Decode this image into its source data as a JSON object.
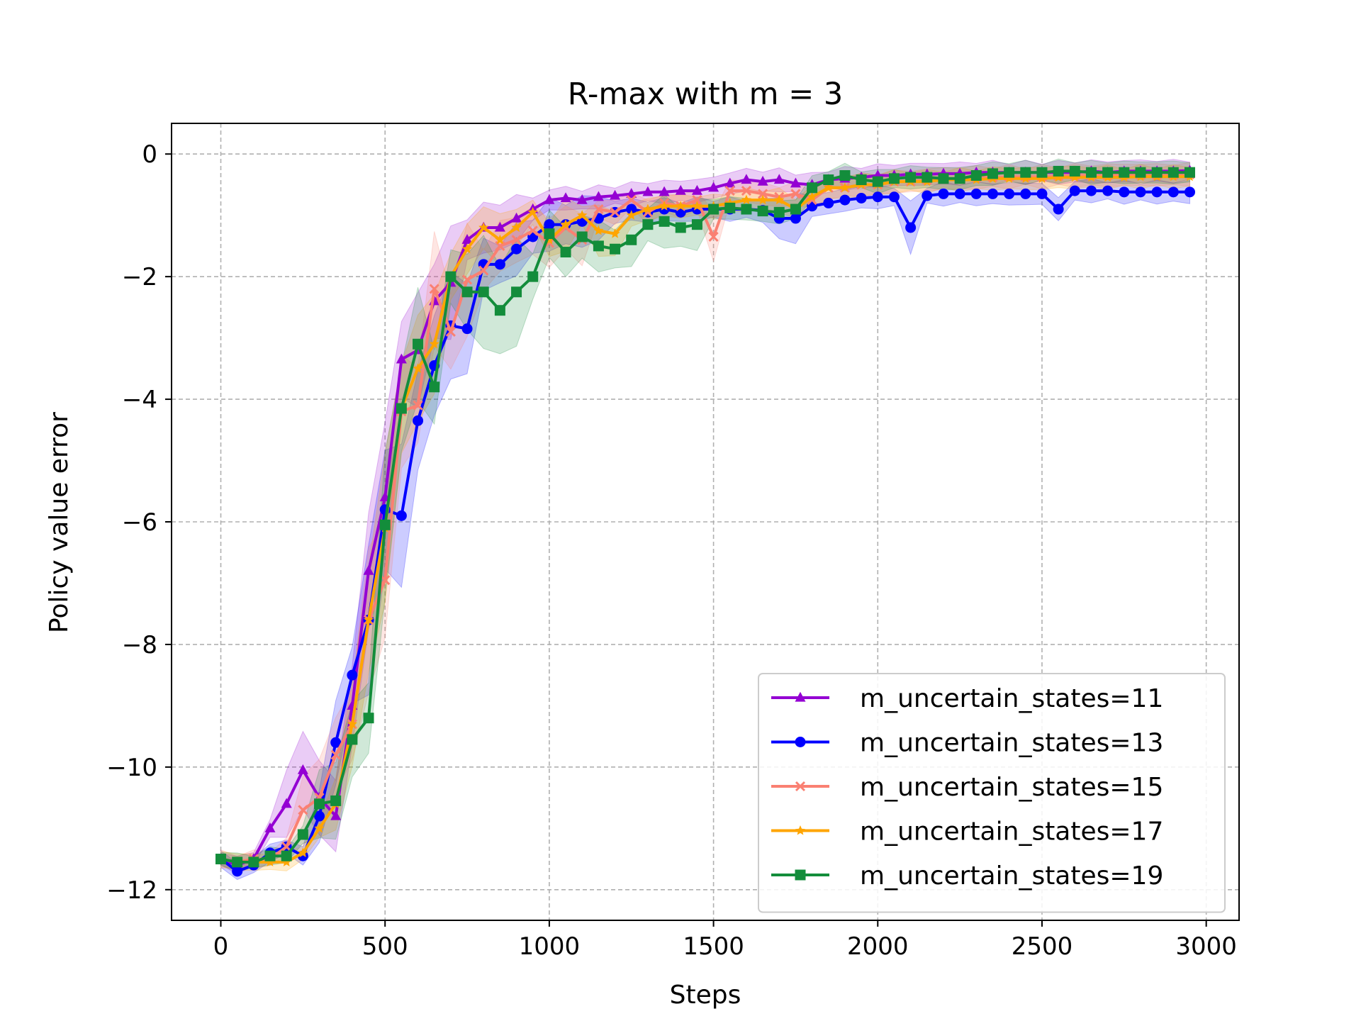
{
  "chart_data": {
    "type": "line",
    "title": "R-max with m = 3",
    "xlabel": "Steps",
    "ylabel": "Policy value error",
    "xlim": [
      -150,
      3100
    ],
    "ylim": [
      -12.5,
      0.5
    ],
    "xticks": [
      0,
      500,
      1000,
      1500,
      2000,
      2500,
      3000
    ],
    "yticks": [
      0,
      -2,
      -4,
      -6,
      -8,
      -10,
      -12
    ],
    "xtick_labels": [
      "0",
      "500",
      "1000",
      "1500",
      "2000",
      "2500",
      "3000"
    ],
    "ytick_labels": [
      "0",
      "−2",
      "−4",
      "−6",
      "−8",
      "−10",
      "−12"
    ],
    "grid": true,
    "legend_position": "lower right",
    "x_step": 50,
    "series": [
      {
        "name": "m_uncertain_states=11",
        "color": "#9400D3",
        "marker": "triangle",
        "values": [
          -11.5,
          -11.6,
          -11.5,
          -11.0,
          -10.6,
          -10.05,
          -10.5,
          -10.8,
          -9.0,
          -6.8,
          -5.6,
          -3.35,
          -3.2,
          -2.4,
          -2.1,
          -1.4,
          -1.2,
          -1.2,
          -1.05,
          -0.9,
          -0.75,
          -0.72,
          -0.75,
          -0.7,
          -0.68,
          -0.65,
          -0.62,
          -0.62,
          -0.6,
          -0.6,
          -0.55,
          -0.48,
          -0.42,
          -0.45,
          -0.42,
          -0.48,
          -0.5,
          -0.42,
          -0.4,
          -0.38,
          -0.35,
          -0.35,
          -0.33,
          -0.33,
          -0.32,
          -0.32,
          -0.3,
          -0.3,
          -0.3,
          -0.3,
          -0.3,
          -0.3,
          -0.3,
          -0.28,
          -0.3,
          -0.28,
          -0.28,
          -0.28,
          -0.28,
          -0.27
        ]
      },
      {
        "name": "m_uncertain_states=13",
        "color": "#0000FF",
        "marker": "circle",
        "values": [
          -11.5,
          -11.7,
          -11.6,
          -11.4,
          -11.3,
          -11.45,
          -10.8,
          -9.6,
          -8.5,
          -7.6,
          -5.8,
          -5.9,
          -4.35,
          -3.45,
          -2.8,
          -2.85,
          -1.8,
          -1.8,
          -1.55,
          -1.35,
          -1.15,
          -1.15,
          -1.1,
          -1.05,
          -0.95,
          -0.9,
          -0.95,
          -0.9,
          -0.95,
          -0.9,
          -0.9,
          -0.9,
          -0.9,
          -0.92,
          -1.05,
          -1.05,
          -0.85,
          -0.8,
          -0.75,
          -0.72,
          -0.7,
          -0.7,
          -1.2,
          -0.68,
          -0.65,
          -0.65,
          -0.65,
          -0.65,
          -0.65,
          -0.65,
          -0.65,
          -0.9,
          -0.6,
          -0.6,
          -0.6,
          -0.62,
          -0.62,
          -0.62,
          -0.62,
          -0.62
        ]
      },
      {
        "name": "m_uncertain_states=15",
        "color": "#FA8072",
        "marker": "x",
        "values": [
          -11.5,
          -11.55,
          -11.5,
          -11.5,
          -11.3,
          -10.7,
          -10.5,
          -9.8,
          -9.3,
          -7.6,
          -6.95,
          -4.2,
          -4.1,
          -2.2,
          -2.9,
          -2.05,
          -1.9,
          -1.5,
          -1.4,
          -1.25,
          -1.45,
          -1.2,
          -1.4,
          -0.9,
          -0.95,
          -0.75,
          -0.95,
          -0.8,
          -0.85,
          -0.75,
          -1.35,
          -0.6,
          -0.6,
          -0.65,
          -0.7,
          -0.65,
          -0.75,
          -0.55,
          -0.55,
          -0.5,
          -0.5,
          -0.45,
          -0.45,
          -0.42,
          -0.4,
          -0.4,
          -0.38,
          -0.38,
          -0.37,
          -0.37,
          -0.37,
          -0.36,
          -0.35,
          -0.35,
          -0.35,
          -0.34,
          -0.34,
          -0.34,
          -0.34,
          -0.33
        ]
      },
      {
        "name": "m_uncertain_states=17",
        "color": "#FFA500",
        "marker": "star",
        "values": [
          -11.5,
          -11.55,
          -11.55,
          -11.55,
          -11.55,
          -11.4,
          -11.0,
          -10.6,
          -9.3,
          -7.6,
          -6.1,
          -4.15,
          -3.5,
          -3.1,
          -2.0,
          -1.55,
          -1.2,
          -1.4,
          -1.2,
          -0.95,
          -1.4,
          -1.15,
          -1.0,
          -1.25,
          -1.3,
          -1.0,
          -0.9,
          -0.85,
          -0.85,
          -0.85,
          -0.85,
          -0.8,
          -0.75,
          -0.75,
          -0.75,
          -0.9,
          -0.7,
          -0.55,
          -0.55,
          -0.5,
          -0.5,
          -0.45,
          -0.45,
          -0.45,
          -0.42,
          -0.42,
          -0.42,
          -0.4,
          -0.4,
          -0.4,
          -0.4,
          -0.38,
          -0.38,
          -0.38,
          -0.38,
          -0.38,
          -0.37,
          -0.37,
          -0.37,
          -0.37
        ]
      },
      {
        "name": "m_uncertain_states=19",
        "color": "#138D3B",
        "marker": "square",
        "values": [
          -11.5,
          -11.55,
          -11.55,
          -11.45,
          -11.45,
          -11.1,
          -10.6,
          -10.55,
          -9.55,
          -9.2,
          -6.05,
          -4.15,
          -3.1,
          -3.8,
          -2.0,
          -2.25,
          -2.25,
          -2.55,
          -2.25,
          -2.0,
          -1.3,
          -1.6,
          -1.35,
          -1.5,
          -1.55,
          -1.4,
          -1.15,
          -1.1,
          -1.2,
          -1.15,
          -0.9,
          -0.88,
          -0.9,
          -0.93,
          -0.95,
          -0.9,
          -0.55,
          -0.42,
          -0.35,
          -0.42,
          -0.45,
          -0.4,
          -0.38,
          -0.38,
          -0.4,
          -0.4,
          -0.35,
          -0.32,
          -0.3,
          -0.3,
          -0.3,
          -0.28,
          -0.28,
          -0.3,
          -0.3,
          -0.3,
          -0.3,
          -0.3,
          -0.3,
          -0.3
        ]
      }
    ]
  }
}
